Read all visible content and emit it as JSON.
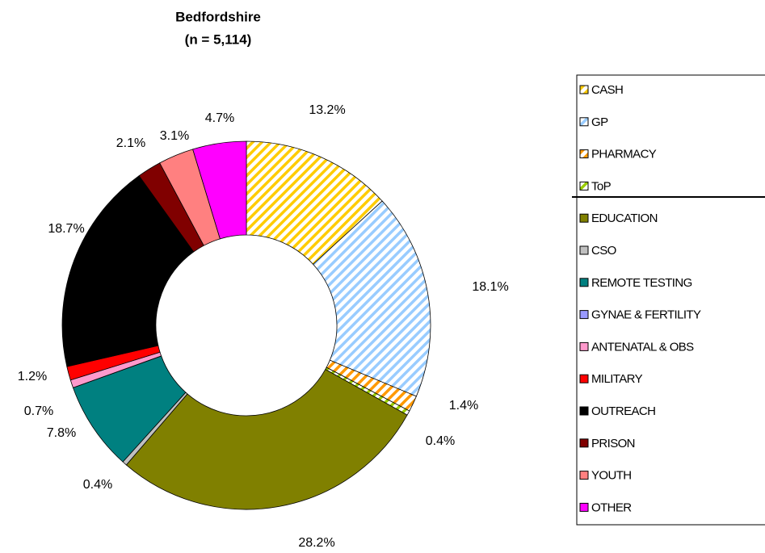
{
  "chart_data": {
    "type": "donut",
    "title": "Bedfordshire",
    "subtitle": "(n = 5,114)",
    "categories": [
      "CASH",
      "GP",
      "PHARMACY",
      "ToP",
      "EDUCATION",
      "CSO",
      "REMOTE TESTING",
      "GYNAE & FERTILITY",
      "ANTENATAL & OBS",
      "MILITARY",
      "OUTREACH",
      "PRISON",
      "YOUTH",
      "OTHER"
    ],
    "values": [
      13.2,
      18.1,
      1.4,
      0.4,
      28.2,
      0.4,
      7.8,
      0,
      0.7,
      1.2,
      18.7,
      2.1,
      3.1,
      4.7
    ],
    "value_labels": [
      "13.2%",
      "18.1%",
      "1.4%",
      "0.4%",
      "28.2%",
      "0.4%",
      "7.8%",
      null,
      "0.7%",
      "1.2%",
      "18.7%",
      "2.1%",
      "3.1%",
      "4.7%"
    ],
    "colors": [
      "#ffcc00",
      "#99ccff",
      "#ff9900",
      "#99cc00",
      "#808000",
      "#c0c0c0",
      "#008080",
      "#9999ff",
      "#ff99cc",
      "#ff0000",
      "#000000",
      "#800000",
      "#ff8080",
      "#ff00ff"
    ],
    "hatched": [
      true,
      true,
      true,
      true,
      false,
      false,
      false,
      false,
      false,
      false,
      false,
      false,
      false,
      false
    ]
  }
}
